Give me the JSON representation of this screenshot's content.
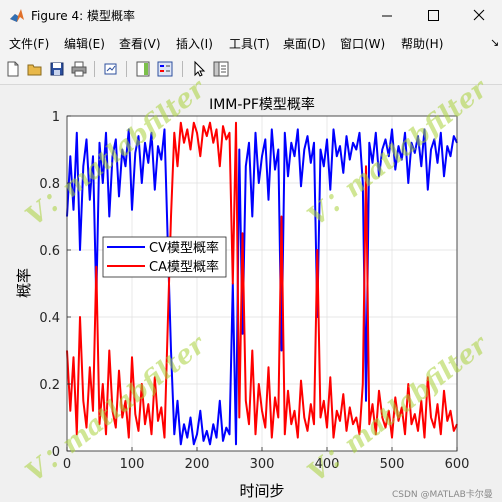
{
  "window": {
    "title": "Figure 4: 模型概率",
    "menus": [
      "文件(F)",
      "编辑(E)",
      "查看(V)",
      "插入(I)",
      "工具(T)",
      "桌面(D)",
      "窗口(W)",
      "帮助(H)"
    ],
    "toolbar_icons": [
      "new-figure-icon",
      "open-file-icon",
      "save-icon",
      "print-icon",
      "link-plot-icon",
      "insert-colorbar-icon",
      "insert-legend-icon",
      "edit-plot-icon",
      "property-inspector-icon"
    ]
  },
  "watermark": "V：matlabfilter",
  "credit": "CSDN @MATLAB卡尔曼",
  "colors": {
    "cv": "#0000ff",
    "ca": "#ff0000",
    "watermark": "#a8d23c"
  },
  "chart_data": {
    "type": "line",
    "title": "IMM-PF模型概率",
    "xlabel": "时间步",
    "ylabel": "概率",
    "xlim": [
      0,
      600
    ],
    "ylim": [
      0,
      1
    ],
    "xticks": [
      0,
      100,
      200,
      300,
      400,
      500,
      600
    ],
    "yticks": [
      0,
      0.2,
      0.4,
      0.6,
      0.8,
      1
    ],
    "ytick_labels": [
      "0",
      "0.2",
      "0.4",
      "0.6",
      "0.8",
      "1"
    ],
    "grid": true,
    "legend_position": "middle-left",
    "x": [
      0,
      5,
      10,
      15,
      20,
      25,
      30,
      35,
      40,
      45,
      50,
      55,
      60,
      65,
      70,
      75,
      80,
      85,
      90,
      95,
      100,
      105,
      110,
      115,
      120,
      125,
      130,
      135,
      140,
      145,
      150,
      155,
      160,
      165,
      170,
      175,
      180,
      185,
      190,
      195,
      200,
      205,
      210,
      215,
      220,
      225,
      230,
      235,
      240,
      245,
      250,
      255,
      260,
      265,
      270,
      275,
      280,
      285,
      290,
      295,
      300,
      305,
      310,
      315,
      320,
      325,
      330,
      335,
      340,
      345,
      350,
      355,
      360,
      365,
      370,
      375,
      380,
      385,
      390,
      395,
      400,
      405,
      410,
      415,
      420,
      425,
      430,
      435,
      440,
      445,
      450,
      455,
      460,
      465,
      470,
      475,
      480,
      485,
      490,
      495,
      500,
      505,
      510,
      515,
      520,
      525,
      530,
      535,
      540,
      545,
      550,
      555,
      560,
      565,
      570,
      575,
      580,
      585,
      590,
      595,
      600
    ],
    "series": [
      {
        "name": "CV模型概率",
        "values": [
          0.7,
          0.88,
          0.72,
          0.95,
          0.6,
          0.85,
          0.93,
          0.75,
          0.88,
          0.45,
          0.92,
          0.8,
          0.95,
          0.7,
          0.88,
          0.93,
          0.76,
          0.9,
          0.85,
          0.96,
          0.72,
          0.89,
          0.94,
          0.8,
          0.92,
          0.86,
          0.95,
          0.78,
          0.91,
          0.87,
          0.96,
          0.62,
          0.3,
          0.05,
          0.15,
          0.02,
          0.08,
          0.04,
          0.1,
          0.02,
          0.05,
          0.12,
          0.03,
          0.06,
          0.02,
          0.08,
          0.04,
          0.15,
          0.03,
          0.07,
          0.05,
          0.5,
          0.02,
          0.9,
          0.35,
          0.85,
          0.92,
          0.7,
          0.95,
          0.8,
          0.88,
          0.93,
          0.75,
          0.96,
          0.84,
          0.9,
          0.3,
          0.95,
          0.82,
          0.92,
          0.88,
          0.96,
          0.79,
          0.9,
          0.94,
          0.86,
          0.92,
          0.4,
          0.9,
          0.85,
          0.93,
          0.78,
          0.96,
          0.88,
          0.91,
          0.83,
          0.94,
          0.87,
          0.92,
          0.9,
          0.95,
          0.8,
          0.15,
          0.92,
          0.86,
          0.95,
          0.82,
          0.9,
          0.93,
          0.88,
          0.96,
          0.84,
          0.91,
          0.87,
          0.95,
          0.8,
          0.92,
          0.89,
          0.94,
          0.85,
          0.96,
          0.78,
          0.9,
          0.93,
          0.86,
          0.95,
          0.82,
          0.91,
          0.88,
          0.94,
          0.92
        ]
      },
      {
        "name": "CA模型概率",
        "values": [
          0.3,
          0.12,
          0.28,
          0.05,
          0.4,
          0.15,
          0.07,
          0.25,
          0.12,
          0.55,
          0.08,
          0.2,
          0.05,
          0.3,
          0.12,
          0.07,
          0.24,
          0.1,
          0.15,
          0.04,
          0.28,
          0.11,
          0.06,
          0.2,
          0.08,
          0.14,
          0.05,
          0.22,
          0.09,
          0.13,
          0.04,
          0.38,
          0.7,
          0.95,
          0.85,
          0.98,
          0.92,
          0.96,
          0.9,
          0.98,
          0.95,
          0.88,
          0.97,
          0.94,
          0.98,
          0.92,
          0.96,
          0.85,
          0.97,
          0.93,
          0.95,
          0.5,
          0.98,
          0.1,
          0.65,
          0.15,
          0.08,
          0.3,
          0.05,
          0.2,
          0.12,
          0.07,
          0.25,
          0.04,
          0.16,
          0.1,
          0.7,
          0.05,
          0.18,
          0.08,
          0.12,
          0.04,
          0.21,
          0.1,
          0.06,
          0.14,
          0.08,
          0.6,
          0.1,
          0.15,
          0.07,
          0.22,
          0.04,
          0.12,
          0.09,
          0.17,
          0.06,
          0.13,
          0.08,
          0.1,
          0.05,
          0.2,
          0.85,
          0.08,
          0.14,
          0.05,
          0.18,
          0.1,
          0.07,
          0.12,
          0.04,
          0.16,
          0.09,
          0.13,
          0.05,
          0.2,
          0.08,
          0.11,
          0.06,
          0.15,
          0.04,
          0.22,
          0.1,
          0.07,
          0.14,
          0.05,
          0.18,
          0.09,
          0.12,
          0.06,
          0.08
        ]
      }
    ]
  }
}
